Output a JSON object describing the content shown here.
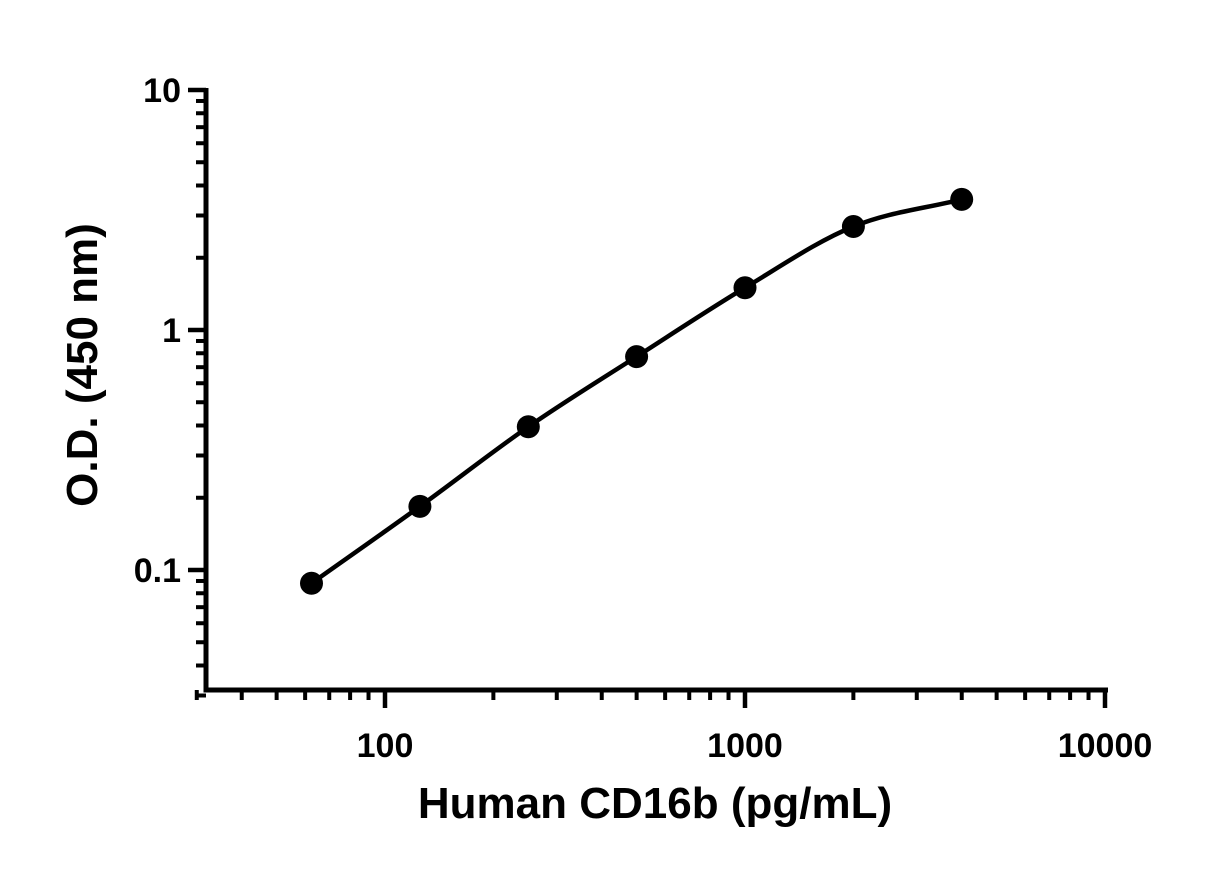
{
  "chart_data": {
    "type": "scatter",
    "title": "",
    "xlabel": "Human CD16b (pg/mL)",
    "ylabel": "O.D. (450 nm)",
    "x_scale": "log",
    "y_scale": "log",
    "xlim": [
      30,
      10000
    ],
    "ylim": [
      0.03,
      10
    ],
    "x_tick_labels": [
      "100",
      "1000",
      "10000"
    ],
    "y_tick_labels": [
      "0.1",
      "1",
      "10"
    ],
    "grid": false,
    "legend": "none",
    "series": [
      {
        "x": [
          62.5,
          125,
          250,
          500,
          1000,
          2000,
          4000
        ],
        "y": [
          0.088,
          0.184,
          0.395,
          0.775,
          1.5,
          2.7,
          3.5
        ],
        "color": "#000000",
        "marker": "filled-circle",
        "fit": "4PL-curve"
      }
    ]
  }
}
